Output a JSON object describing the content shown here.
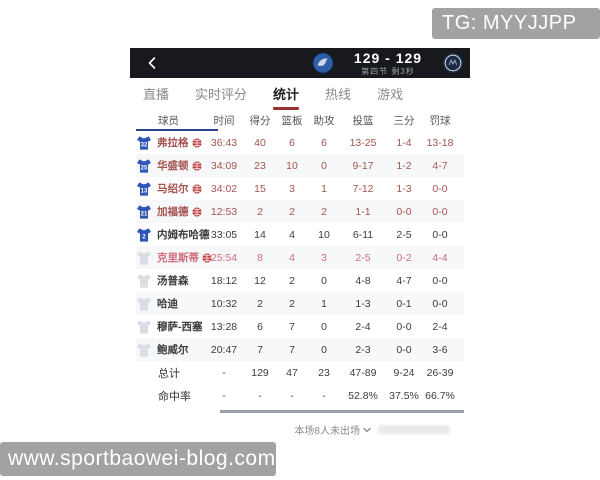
{
  "colors": {
    "accent_red": "#9c2f2f",
    "jersey_blue": "#2f55b8",
    "jersey_gray": "#d9dee5",
    "oncourt_starter_text": "#a65550",
    "oncourt_bench_text": "#cf6e7d",
    "normal_text": "#3c3c3c",
    "player_underline_blue": "#27408f"
  },
  "watermarks": {
    "tg_badge": "TG: MYYJJPP",
    "site_badge": "www.sportbaowei-blog.com"
  },
  "header": {
    "score": "129 - 129",
    "period": "第四节 剩3秒"
  },
  "tabs": [
    {
      "label": "直播",
      "active": false
    },
    {
      "label": "实时评分",
      "active": false
    },
    {
      "label": "统计",
      "active": true
    },
    {
      "label": "热线",
      "active": false
    },
    {
      "label": "游戏",
      "active": false
    }
  ],
  "stats_table": {
    "columns": [
      "球员",
      "时间",
      "得分",
      "篮板",
      "助攻",
      "投篮",
      "三分",
      "罚球"
    ],
    "players": [
      {
        "jersey_num": "32",
        "jersey_color": "blue",
        "name": "弗拉格",
        "on_court": true,
        "stats": [
          "36:43",
          "40",
          "6",
          "6",
          "13-25",
          "1-4",
          "13-18"
        ]
      },
      {
        "jersey_num": "25",
        "jersey_color": "blue",
        "name": "华盛顿",
        "on_court": true,
        "stats": [
          "34:09",
          "23",
          "10",
          "0",
          "9-17",
          "1-2",
          "4-7"
        ]
      },
      {
        "jersey_num": "13",
        "jersey_color": "blue",
        "name": "马绍尔",
        "on_court": true,
        "stats": [
          "34:02",
          "15",
          "3",
          "1",
          "7-12",
          "1-3",
          "0-0"
        ]
      },
      {
        "jersey_num": "21",
        "jersey_color": "blue",
        "name": "加福德",
        "on_court": true,
        "stats": [
          "12:53",
          "2",
          "2",
          "2",
          "1-1",
          "0-0",
          "0-0"
        ]
      },
      {
        "jersey_num": "2",
        "jersey_color": "blue",
        "name": "内姆布哈德",
        "on_court": false,
        "stats": [
          "33:05",
          "14",
          "4",
          "10",
          "6-11",
          "2-5",
          "0-0"
        ]
      },
      {
        "jersey_num": "",
        "jersey_color": "gray",
        "name": "克里斯蒂",
        "on_court": true,
        "stats": [
          "25:54",
          "8",
          "4",
          "3",
          "2-5",
          "0-2",
          "4-4"
        ]
      },
      {
        "jersey_num": "",
        "jersey_color": "gray",
        "name": "汤普森",
        "on_court": false,
        "stats": [
          "18:12",
          "12",
          "2",
          "0",
          "4-8",
          "4-7",
          "0-0"
        ]
      },
      {
        "jersey_num": "",
        "jersey_color": "gray",
        "name": "哈迪",
        "on_court": false,
        "stats": [
          "10:32",
          "2",
          "2",
          "1",
          "1-3",
          "0-1",
          "0-0"
        ]
      },
      {
        "jersey_num": "",
        "jersey_color": "gray",
        "name": "穆萨-西塞",
        "on_court": false,
        "stats": [
          "13:28",
          "6",
          "7",
          "0",
          "2-4",
          "0-0",
          "2-4"
        ]
      },
      {
        "jersey_num": "",
        "jersey_color": "gray",
        "name": "鲍威尔",
        "on_court": false,
        "stats": [
          "20:47",
          "7",
          "7",
          "0",
          "2-3",
          "0-0",
          "3-6"
        ]
      }
    ],
    "totals_label": "总计",
    "totals": [
      "-",
      "129",
      "47",
      "23",
      "47-89",
      "9-24",
      "26-39"
    ],
    "pct_label": "命中率",
    "pct": [
      "-",
      "-",
      "-",
      "-",
      "52.8%",
      "37.5%",
      "66.7%"
    ]
  },
  "footer_note": "本场8人未出场"
}
